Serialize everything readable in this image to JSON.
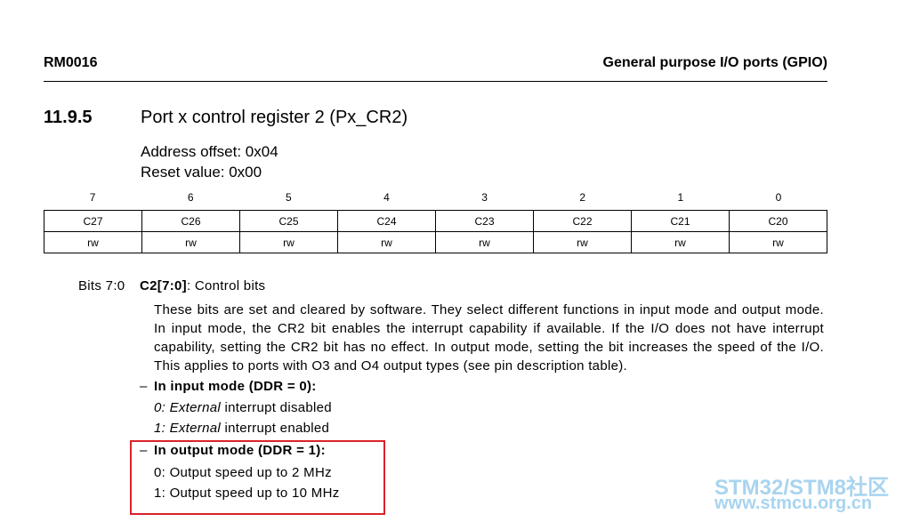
{
  "header": {
    "doc_id": "RM0016",
    "section": "General purpose I/O ports (GPIO)"
  },
  "title": {
    "number": "11.9.5",
    "text": "Port x control register 2 (Px_CR2)"
  },
  "address_offset": "Address offset: 0x04",
  "reset_value": "Reset value: 0x00",
  "register": {
    "bit_numbers": [
      7,
      6,
      5,
      4,
      3,
      2,
      1,
      0
    ],
    "fields": [
      "C27",
      "C26",
      "C25",
      "C24",
      "C23",
      "C22",
      "C21",
      "C20"
    ],
    "access": [
      "rw",
      "rw",
      "rw",
      "rw",
      "rw",
      "rw",
      "rw",
      "rw"
    ]
  },
  "description": {
    "bits": "Bits 7:0",
    "field": "C2[7:0]",
    "field_desc": ": Control bits",
    "paragraph": "These bits are set and cleared by software. They select different functions in input mode and output mode. In input mode, the CR2 bit enables the interrupt capability if available. If the I/O does not have interrupt capability, setting the CR2 bit has no effect. In output mode, setting the bit increases the speed of the I/O. This applies to ports with O3 and O4 output types (see pin description table).",
    "input_mode": {
      "marker": "–",
      "heading": "In input mode (DDR = 0):",
      "items": [
        {
          "italic": "0: External",
          "rest": " interrupt disabled"
        },
        {
          "italic": "1: External",
          "rest": " interrupt enabled"
        }
      ]
    },
    "output_mode": {
      "marker": "–",
      "heading": "In output mode (DDR = 1):",
      "items": [
        "0: Output speed up to 2 MHz",
        "1: Output speed up to 10 MHz"
      ]
    }
  },
  "watermark": {
    "line1": "STM32/STM8社区",
    "line2": "www.stmcu.org.cn"
  }
}
